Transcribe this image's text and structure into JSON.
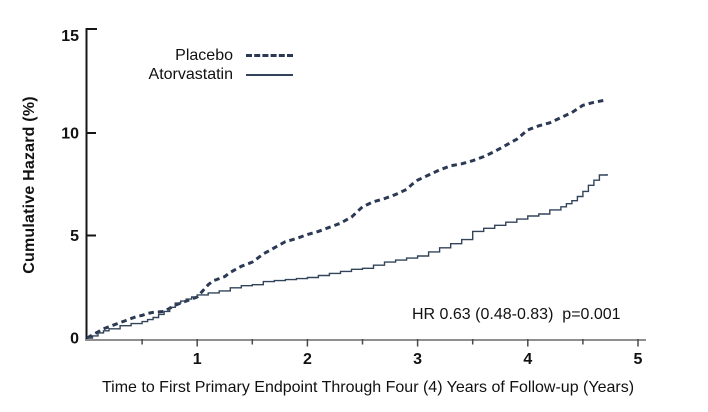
{
  "chart_data": {
    "type": "line",
    "title": "",
    "xlabel": "Time to First Primary Endpoint Through Four (4) Years of Follow-up (Years)",
    "ylabel": "Cumulative Hazard (%)",
    "xlim": [
      0,
      5
    ],
    "ylim": [
      0,
      15
    ],
    "xticks_major": [
      1,
      2,
      3,
      4,
      5
    ],
    "xticks_minor": [
      0.5,
      1.5,
      2.5,
      3.5,
      4.5
    ],
    "yticks": [
      0,
      5,
      10,
      15
    ],
    "grid": false,
    "legend_position": "inside-top-left",
    "annotation": "HR 0.63 (0.48-0.83)  p=0.001",
    "axis_colors": {
      "y_axis": "#161616",
      "x_axis": "#8f8f8f",
      "tick": "#4a4a4a",
      "text": "#111111"
    },
    "series": [
      {
        "name": "Placebo",
        "style": "dashed",
        "interpolation": "linear",
        "color": "#2b3954",
        "x": [
          0,
          0.05,
          0.1,
          0.15,
          0.2,
          0.25,
          0.3,
          0.35,
          0.4,
          0.45,
          0.5,
          0.55,
          0.6,
          0.7,
          0.75,
          0.8,
          0.85,
          0.9,
          0.95,
          1.0,
          1.05,
          1.1,
          1.15,
          1.2,
          1.25,
          1.3,
          1.35,
          1.4,
          1.45,
          1.5,
          1.55,
          1.6,
          1.65,
          1.7,
          1.75,
          1.8,
          1.9,
          1.95,
          2.0,
          2.1,
          2.2,
          2.3,
          2.35,
          2.4,
          2.45,
          2.5,
          2.6,
          2.7,
          2.8,
          2.9,
          2.95,
          3.0,
          3.1,
          3.2,
          3.3,
          3.4,
          3.5,
          3.6,
          3.7,
          3.8,
          3.9,
          4.0,
          4.1,
          4.2,
          4.3,
          4.4,
          4.5,
          4.6,
          4.7
        ],
        "y": [
          0,
          0.15,
          0.3,
          0.45,
          0.55,
          0.65,
          0.75,
          0.85,
          0.95,
          1.05,
          1.1,
          1.2,
          1.25,
          1.3,
          1.45,
          1.6,
          1.7,
          1.8,
          1.9,
          2.0,
          2.3,
          2.6,
          2.8,
          2.9,
          3.0,
          3.2,
          3.35,
          3.5,
          3.6,
          3.7,
          3.9,
          4.1,
          4.25,
          4.4,
          4.55,
          4.7,
          4.85,
          4.95,
          5.05,
          5.2,
          5.4,
          5.6,
          5.75,
          5.9,
          6.15,
          6.4,
          6.65,
          6.8,
          7.0,
          7.25,
          7.5,
          7.7,
          7.95,
          8.2,
          8.4,
          8.5,
          8.65,
          8.85,
          9.1,
          9.4,
          9.7,
          10.15,
          10.35,
          10.5,
          10.75,
          11.0,
          11.35,
          11.5,
          11.6
        ]
      },
      {
        "name": "Atorvastatin",
        "style": "solid",
        "interpolation": "step-after",
        "color": "#32445a",
        "x": [
          0,
          0.05,
          0.1,
          0.15,
          0.2,
          0.3,
          0.4,
          0.5,
          0.55,
          0.6,
          0.65,
          0.7,
          0.75,
          0.8,
          0.85,
          0.9,
          0.95,
          1.0,
          1.1,
          1.2,
          1.3,
          1.4,
          1.5,
          1.6,
          1.7,
          1.8,
          1.9,
          2.0,
          2.1,
          2.2,
          2.3,
          2.4,
          2.5,
          2.6,
          2.7,
          2.8,
          2.9,
          3.0,
          3.1,
          3.2,
          3.3,
          3.4,
          3.5,
          3.6,
          3.7,
          3.8,
          3.9,
          4.0,
          4.1,
          4.2,
          4.3,
          4.35,
          4.4,
          4.45,
          4.5,
          4.55,
          4.6,
          4.65,
          4.72
        ],
        "y": [
          0,
          0.1,
          0.25,
          0.35,
          0.45,
          0.6,
          0.7,
          0.8,
          0.9,
          1.0,
          1.15,
          1.3,
          1.5,
          1.7,
          1.8,
          1.9,
          2.0,
          2.1,
          2.2,
          2.3,
          2.45,
          2.55,
          2.6,
          2.75,
          2.8,
          2.85,
          2.9,
          2.95,
          3.05,
          3.15,
          3.25,
          3.35,
          3.4,
          3.55,
          3.7,
          3.8,
          3.9,
          4.0,
          4.2,
          4.4,
          4.6,
          4.8,
          5.2,
          5.35,
          5.5,
          5.65,
          5.8,
          5.95,
          6.05,
          6.25,
          6.4,
          6.55,
          6.7,
          6.9,
          7.15,
          7.45,
          7.7,
          7.95,
          8.0
        ]
      }
    ]
  }
}
